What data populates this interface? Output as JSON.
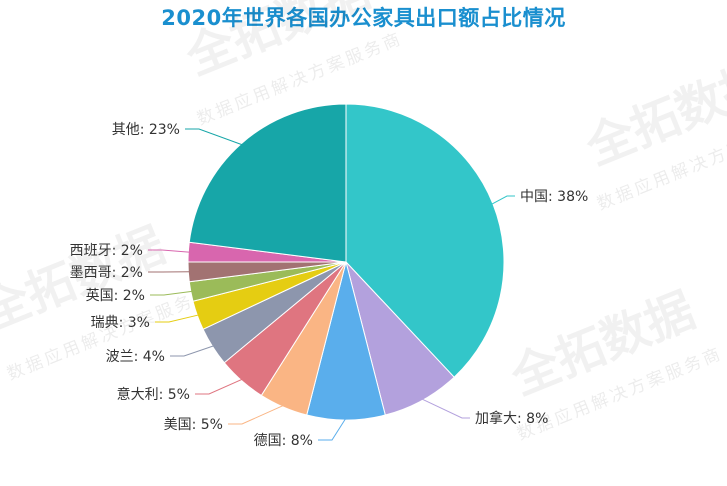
{
  "watermark": {
    "brand": "全拓数据",
    "tagline": "数据应用解决方案服务商"
  },
  "chart_data": {
    "type": "pie",
    "title": "2020年世界各国办公家具出口额占比情况",
    "unit": "%",
    "slices": [
      {
        "label": "中国",
        "value": 38,
        "text": "中国: 38%",
        "color": "#33c6c9"
      },
      {
        "label": "加拿大",
        "value": 8,
        "text": "加拿大: 8%",
        "color": "#b3a1dd"
      },
      {
        "label": "德国",
        "value": 8,
        "text": "德国: 8%",
        "color": "#5aaeec"
      },
      {
        "label": "美国",
        "value": 5,
        "text": "美国: 5%",
        "color": "#fab584"
      },
      {
        "label": "意大利",
        "value": 5,
        "text": "意大利: 5%",
        "color": "#df7580"
      },
      {
        "label": "波兰",
        "value": 4,
        "text": "波兰: 4%",
        "color": "#8d96ad"
      },
      {
        "label": "瑞典",
        "value": 3,
        "text": "瑞典: 3%",
        "color": "#e5cd12"
      },
      {
        "label": "英国",
        "value": 2,
        "text": "英国: 2%",
        "color": "#9bbb59"
      },
      {
        "label": "墨西哥",
        "value": 2,
        "text": "墨西哥: 2%",
        "color": "#a27272"
      },
      {
        "label": "西班牙",
        "value": 2,
        "text": "西班牙: 2%",
        "color": "#d866ae"
      },
      {
        "label": "其他",
        "value": 23,
        "text": "其他: 23%",
        "color": "#17a6a8"
      }
    ]
  }
}
